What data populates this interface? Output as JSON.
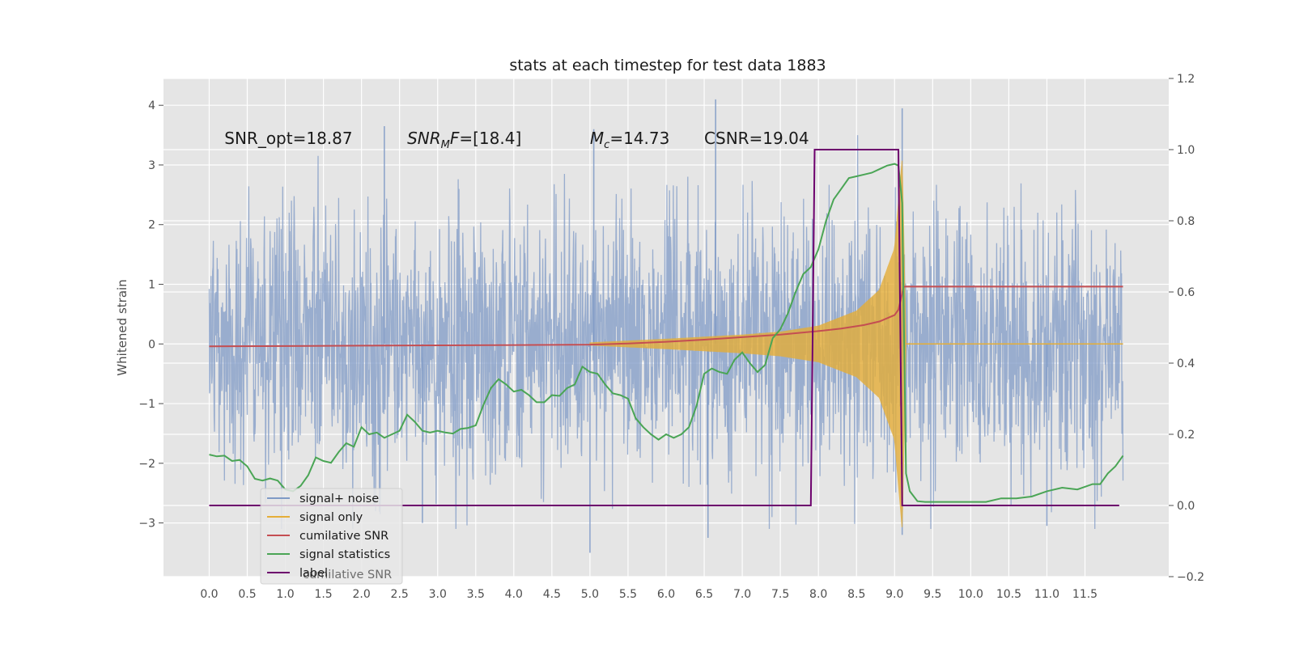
{
  "chart_data": {
    "type": "line",
    "title": "stats at each timestep for test data 1883",
    "ylabel": "Whitened strain",
    "xlim": [
      -0.6,
      12.6
    ],
    "ylim": [
      -3.9,
      4.45
    ],
    "y2lim": [
      -0.2,
      1.2
    ],
    "x_ticks": [
      "0.0",
      "0.5",
      "1.0",
      "1.5",
      "2.0",
      "2.5",
      "3.0",
      "3.5",
      "4.0",
      "4.5",
      "5.0",
      "5.5",
      "6.0",
      "6.5",
      "7.0",
      "7.5",
      "8.0",
      "8.5",
      "9.0",
      "9.5",
      "10.0",
      "10.5",
      "11.0",
      "11.5"
    ],
    "y_ticks": [
      "−3",
      "−2",
      "−1",
      "0",
      "1",
      "2",
      "3",
      "4"
    ],
    "y2_ticks": [
      "−0.2",
      "0.0",
      "0.2",
      "0.4",
      "0.6",
      "0.8",
      "1.0",
      "1.2"
    ],
    "grid": true,
    "legend_position": "lower-left",
    "annotations": [
      {
        "text": "SNR_opt=18.87",
        "x": 0.2,
        "y": 3.35
      },
      {
        "text": "SNR_MF=[18.4]",
        "x": 2.6,
        "y": 3.35,
        "math": true
      },
      {
        "text": "M_c=14.73",
        "x": 5.0,
        "y": 3.35,
        "math": true
      },
      {
        "text": "CSNR=19.04",
        "x": 6.5,
        "y": 3.35
      }
    ],
    "colors": {
      "signal_noise": "#7f9ac6",
      "signal_only": "#e5ae38",
      "cumulative_snr": "#c44e52",
      "signal_statistics": "#4aa555",
      "label": "#6d006d",
      "background": "#e5e5e5",
      "grid": "#ffffff"
    },
    "series": [
      {
        "name": "signal+ noise",
        "axis": "left",
        "style": "dense noise band",
        "t_range": [
          0.0,
          12.0
        ],
        "band_core": [
          -1.5,
          1.5
        ],
        "spike_extent": [
          -3.5,
          4.1
        ],
        "notable_spikes": [
          {
            "x": 2.3,
            "y": 3.65
          },
          {
            "x": 5.05,
            "y": 3.6
          },
          {
            "x": 6.65,
            "y": 4.1
          },
          {
            "x": 9.1,
            "y": 3.95
          },
          {
            "x": 5.0,
            "y": -3.5
          },
          {
            "x": 6.55,
            "y": -3.25
          },
          {
            "x": 9.1,
            "y": -3.2
          },
          {
            "x": 2.8,
            "y": -3.0
          },
          {
            "x": 11.0,
            "y": -3.05
          }
        ]
      },
      {
        "name": "signal only",
        "axis": "left",
        "style": "chirp envelope",
        "envelope_x": [
          5.0,
          6.0,
          7.0,
          7.5,
          8.0,
          8.5,
          8.8,
          9.0,
          9.1,
          9.15
        ],
        "envelope_y": [
          0.02,
          0.08,
          0.15,
          0.2,
          0.3,
          0.55,
          0.9,
          1.6,
          3.1,
          0.02
        ]
      },
      {
        "name": "cumilative SNR",
        "axis": "right",
        "x": [
          0.0,
          1.0,
          2.0,
          3.0,
          4.0,
          5.0,
          5.5,
          6.0,
          6.5,
          7.0,
          7.5,
          8.0,
          8.3,
          8.6,
          8.8,
          9.0,
          9.05,
          9.12,
          10.0,
          11.0,
          12.0
        ],
        "values": [
          0.447,
          0.448,
          0.449,
          0.45,
          0.451,
          0.452,
          0.455,
          0.46,
          0.466,
          0.473,
          0.48,
          0.49,
          0.497,
          0.507,
          0.517,
          0.535,
          0.55,
          0.615,
          0.615,
          0.615,
          0.615
        ]
      },
      {
        "name": "signal statistics",
        "axis": "right",
        "x": [
          0.0,
          0.1,
          0.2,
          0.3,
          0.4,
          0.5,
          0.6,
          0.7,
          0.8,
          0.9,
          1.0,
          1.1,
          1.2,
          1.3,
          1.4,
          1.5,
          1.6,
          1.7,
          1.8,
          1.9,
          2.0,
          2.1,
          2.2,
          2.3,
          2.4,
          2.5,
          2.6,
          2.7,
          2.8,
          2.9,
          3.0,
          3.1,
          3.2,
          3.3,
          3.4,
          3.5,
          3.6,
          3.7,
          3.8,
          3.9,
          4.0,
          4.1,
          4.2,
          4.3,
          4.4,
          4.5,
          4.6,
          4.7,
          4.8,
          4.9,
          5.0,
          5.1,
          5.2,
          5.3,
          5.4,
          5.5,
          5.6,
          5.7,
          5.8,
          5.9,
          6.0,
          6.1,
          6.2,
          6.3,
          6.4,
          6.5,
          6.6,
          6.7,
          6.8,
          6.9,
          7.0,
          7.1,
          7.2,
          7.3,
          7.4,
          7.5,
          7.6,
          7.7,
          7.8,
          7.9,
          8.0,
          8.1,
          8.2,
          8.3,
          8.4,
          8.5,
          8.6,
          8.7,
          8.8,
          8.9,
          9.0,
          9.05,
          9.1,
          9.15,
          9.2,
          9.3,
          9.4,
          9.6,
          10.0,
          10.2,
          10.4,
          10.6,
          10.8,
          11.0,
          11.2,
          11.4,
          11.6,
          11.7,
          11.8,
          11.9,
          12.0
        ],
        "values": [
          0.143,
          0.138,
          0.14,
          0.125,
          0.128,
          0.11,
          0.075,
          0.07,
          0.076,
          0.07,
          0.045,
          0.04,
          0.055,
          0.085,
          0.135,
          0.125,
          0.12,
          0.15,
          0.175,
          0.165,
          0.22,
          0.2,
          0.205,
          0.19,
          0.2,
          0.21,
          0.255,
          0.235,
          0.21,
          0.205,
          0.21,
          0.205,
          0.202,
          0.215,
          0.218,
          0.225,
          0.282,
          0.33,
          0.355,
          0.34,
          0.32,
          0.325,
          0.31,
          0.29,
          0.29,
          0.31,
          0.308,
          0.33,
          0.34,
          0.39,
          0.375,
          0.37,
          0.34,
          0.315,
          0.31,
          0.3,
          0.245,
          0.22,
          0.2,
          0.185,
          0.2,
          0.19,
          0.2,
          0.22,
          0.28,
          0.37,
          0.385,
          0.375,
          0.37,
          0.41,
          0.43,
          0.4,
          0.375,
          0.395,
          0.47,
          0.495,
          0.54,
          0.6,
          0.65,
          0.67,
          0.72,
          0.8,
          0.86,
          0.89,
          0.92,
          0.925,
          0.93,
          0.935,
          0.945,
          0.955,
          0.96,
          0.955,
          0.85,
          0.09,
          0.04,
          0.012,
          0.01,
          0.01,
          0.01,
          0.01,
          0.02,
          0.02,
          0.025,
          0.04,
          0.05,
          0.045,
          0.06,
          0.06,
          0.09,
          0.11,
          0.14
        ]
      },
      {
        "name": "label",
        "axis": "right",
        "x": [
          0.0,
          7.9,
          7.95,
          9.05,
          9.1,
          11.95
        ],
        "values": [
          0.0,
          0.0,
          1.0,
          1.0,
          0.0,
          0.0
        ]
      }
    ],
    "legend_ghost_text": "cumilative SNR"
  }
}
